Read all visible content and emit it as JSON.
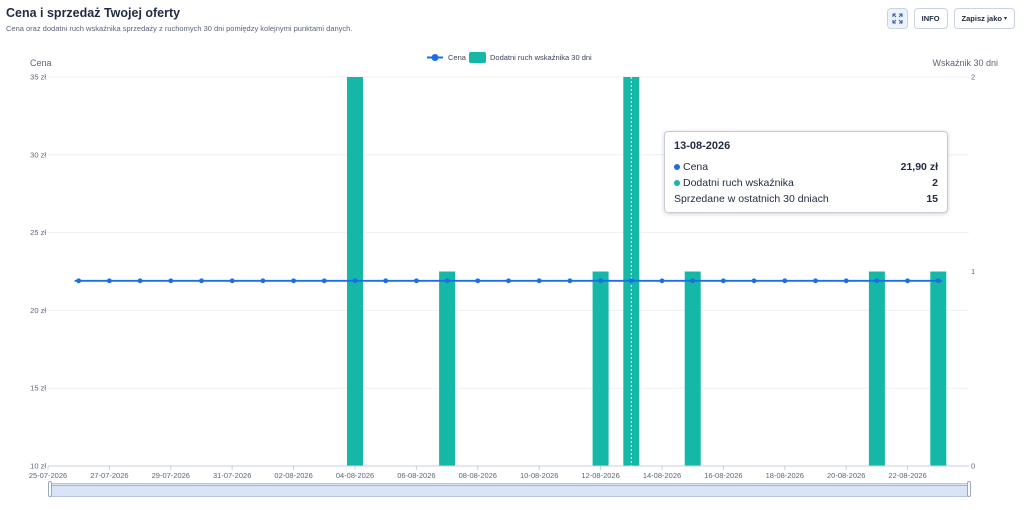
{
  "header": {
    "title": "Cena i sprzedaż Twojej oferty",
    "subtitle": "Cena oraz dodatni ruch wskaźnika sprzedaży z ruchomych 30 dni pomiędzy kolejnymi punktami danych."
  },
  "toolbar": {
    "fullscreen_icon": "expand-icon",
    "info_label": "INFO",
    "save_label": "Zapisz jako",
    "save_caret": "▾"
  },
  "colors": {
    "price": "#1a6fe8",
    "bars": "#15b8a6",
    "grid": "#edf0f5"
  },
  "chart_data": {
    "type": "bar",
    "legend_position": "top-center",
    "grid": true,
    "legend": {
      "price": "Cena",
      "bars": "Dodatni ruch wskaźnika 30 dni"
    },
    "y_left_label": "Cena",
    "y_right_label": "Wskaźnik 30 dni",
    "y_left_ticks": [
      "35 zł",
      "30 zł",
      "25 zł",
      "20 zł",
      "15 zł",
      "10 zł"
    ],
    "y_right_ticks": [
      "2",
      "1",
      "0"
    ],
    "ylim_left": [
      10,
      35
    ],
    "ylim_right": [
      0,
      2
    ],
    "x_ticks": [
      "25-07-2026",
      "27-07-2026",
      "29-07-2026",
      "31-07-2026",
      "02-08-2026",
      "04-08-2026",
      "06-08-2026",
      "08-08-2026",
      "10-08-2026",
      "12-08-2026",
      "14-08-2026",
      "16-08-2026",
      "18-08-2026",
      "20-08-2026",
      "22-08-2026"
    ],
    "x": [
      "26-07-2026",
      "27-07-2026",
      "28-07-2026",
      "29-07-2026",
      "30-07-2026",
      "31-07-2026",
      "01-08-2026",
      "02-08-2026",
      "03-08-2026",
      "04-08-2026",
      "05-08-2026",
      "06-08-2026",
      "07-08-2026",
      "08-08-2026",
      "09-08-2026",
      "10-08-2026",
      "11-08-2026",
      "12-08-2026",
      "13-08-2026",
      "14-08-2026",
      "15-08-2026",
      "16-08-2026",
      "17-08-2026",
      "18-08-2026",
      "19-08-2026",
      "20-08-2026",
      "21-08-2026",
      "22-08-2026",
      "23-08-2026"
    ],
    "series": [
      {
        "name": "Cena",
        "type": "line",
        "axis": "left",
        "values": [
          21.9,
          21.9,
          21.9,
          21.9,
          21.9,
          21.9,
          21.9,
          21.9,
          21.9,
          21.9,
          21.9,
          21.9,
          21.9,
          21.9,
          21.9,
          21.9,
          21.9,
          21.9,
          21.9,
          21.9,
          21.9,
          21.9,
          21.9,
          21.9,
          21.9,
          21.9,
          21.9,
          21.9,
          21.9
        ]
      },
      {
        "name": "Dodatni ruch wskaźnika 30 dni",
        "type": "bar",
        "axis": "right",
        "values": [
          0,
          0,
          0,
          0,
          0,
          0,
          0,
          0,
          0,
          2,
          0,
          0,
          1,
          0,
          0,
          0,
          0,
          1,
          2,
          0,
          1,
          0,
          0,
          0,
          0,
          0,
          1,
          0,
          1
        ]
      }
    ],
    "hovered_index": 18
  },
  "tooltip": {
    "date": "13-08-2026",
    "rows": [
      {
        "label": "Cena",
        "value": "21,90 zł"
      },
      {
        "label": "Dodatni ruch wskaźnika",
        "value": "2"
      },
      {
        "label": "Sprzedane w ostatnich 30 dniach",
        "value": "15"
      }
    ]
  }
}
